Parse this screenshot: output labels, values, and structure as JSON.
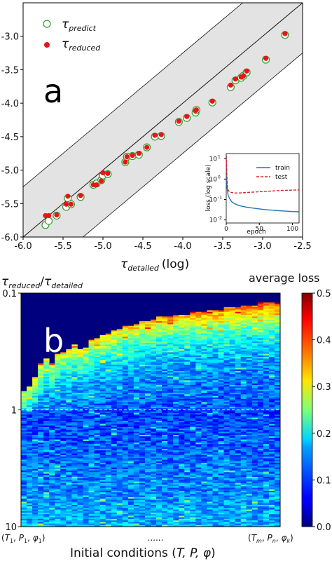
{
  "chart_data": [
    {
      "panel": "a",
      "type": "scatter",
      "xlabel": "τdetailed (log)",
      "xlabel_main": "τ",
      "xlabel_sub": "detailed",
      "xlabel_suffix": "(log)",
      "xlim": [
        -6.0,
        -2.5
      ],
      "ylim": [
        -6.0,
        -2.5
      ],
      "x_ticks": [
        "-6.0",
        "-5.5",
        "-5.0",
        "-4.5",
        "-4.0",
        "-3.5",
        "-3.0",
        "-2.5"
      ],
      "y_ticks": [
        "-3.0",
        "-3.5",
        "-4.0",
        "-4.5",
        "-5.0",
        "-5.5",
        "-6.0"
      ],
      "band_halfwidth": 0.75,
      "series": [
        {
          "name": "τpredict",
          "name_main": "τ",
          "name_sub": "predict",
          "marker": "hollow-circle",
          "edge_color": "#2ca02c",
          "fill_color": "#ffffff"
        },
        {
          "name": "τreduced",
          "name_main": "τ",
          "name_sub": "reduced",
          "marker": "filled-circle",
          "color": "#e8141a"
        }
      ],
      "points": [
        {
          "x": -5.72,
          "pred": -5.82,
          "red": -5.68
        },
        {
          "x": -5.68,
          "pred": -5.76,
          "red": -5.68
        },
        {
          "x": -5.58,
          "pred": -5.68,
          "red": -5.67
        },
        {
          "x": -5.46,
          "pred": -5.55,
          "red": -5.51
        },
        {
          "x": -5.44,
          "pred": -5.42,
          "red": -5.39
        },
        {
          "x": -5.4,
          "pred": -5.51,
          "red": -5.51
        },
        {
          "x": -5.28,
          "pred": -5.4,
          "red": -5.38
        },
        {
          "x": -5.12,
          "pred": -5.22,
          "red": -5.22
        },
        {
          "x": -5.08,
          "pred": -5.2,
          "red": -5.22
        },
        {
          "x": -5.02,
          "pred": -5.15,
          "red": -5.16
        },
        {
          "x": -5.0,
          "pred": -5.08,
          "red": -5.04
        },
        {
          "x": -4.94,
          "pred": -5.06,
          "red": -5.05
        },
        {
          "x": -4.72,
          "pred": -4.88,
          "red": -4.88
        },
        {
          "x": -4.7,
          "pred": -4.8,
          "red": -4.8
        },
        {
          "x": -4.63,
          "pred": -4.79,
          "red": -4.78
        },
        {
          "x": -4.55,
          "pred": -4.77,
          "red": -4.75
        },
        {
          "x": -4.45,
          "pred": -4.66,
          "red": -4.66
        },
        {
          "x": -4.35,
          "pred": -4.5,
          "red": -4.48
        },
        {
          "x": -4.27,
          "pred": -4.49,
          "red": -4.47
        },
        {
          "x": -4.05,
          "pred": -4.28,
          "red": -4.27
        },
        {
          "x": -3.95,
          "pred": -4.22,
          "red": -4.2
        },
        {
          "x": -3.84,
          "pred": -4.14,
          "red": -4.11
        },
        {
          "x": -3.83,
          "pred": -4.1,
          "red": -4.1
        },
        {
          "x": -3.63,
          "pred": -3.99,
          "red": -3.97
        },
        {
          "x": -3.4,
          "pred": -3.76,
          "red": -3.73
        },
        {
          "x": -3.34,
          "pred": -3.66,
          "red": -3.64
        },
        {
          "x": -3.27,
          "pred": -3.62,
          "red": -3.61
        },
        {
          "x": -3.24,
          "pred": -3.59,
          "red": -3.59
        },
        {
          "x": -3.2,
          "pred": -3.54,
          "red": -3.52
        },
        {
          "x": -2.96,
          "pred": -3.35,
          "red": -3.33
        },
        {
          "x": -2.72,
          "pred": -2.98,
          "red": -2.96
        }
      ],
      "inset": {
        "type": "line",
        "xlabel": "epoch",
        "ylabel": "loss (log scale)",
        "x_ticks": [
          "0",
          "50",
          "100"
        ],
        "y_ticks": [
          {
            "base": "10",
            "exp": "1"
          },
          {
            "base": "10",
            "exp": "0"
          },
          {
            "base": "10",
            "exp": "-1"
          },
          {
            "base": "10",
            "exp": "-2"
          }
        ],
        "xlim": [
          0,
          110
        ],
        "ylim_log10": [
          -2.15,
          1.25
        ],
        "series": [
          {
            "name": "train",
            "color": "#1f77b4",
            "dash": "solid",
            "x": [
              0,
              1,
              2,
              3,
              5,
              8,
              12,
              20,
              30,
              40,
              50,
              60,
              70,
              80,
              90,
              100,
              110
            ],
            "log10y": [
              1.2,
              -0.3,
              -0.65,
              -0.8,
              -0.95,
              -1.1,
              -1.2,
              -1.3,
              -1.37,
              -1.42,
              -1.46,
              -1.5,
              -1.52,
              -1.55,
              -1.57,
              -1.59,
              -1.6
            ]
          },
          {
            "name": "test",
            "color": "#d62728",
            "dash": "dashed",
            "x": [
              0,
              1,
              2,
              3,
              5,
              8,
              12,
              20,
              30,
              40,
              50,
              60,
              70,
              80,
              90,
              100,
              110
            ],
            "log10y": [
              1.15,
              0.2,
              -0.45,
              -0.55,
              -0.62,
              -0.66,
              -0.68,
              -0.68,
              -0.66,
              -0.64,
              -0.62,
              -0.6,
              -0.58,
              -0.56,
              -0.55,
              -0.54,
              -0.53
            ]
          }
        ]
      }
    },
    {
      "panel": "b",
      "type": "heatmap",
      "ylabel": "τreduced/τdetailed",
      "ylabel_main1": "τ",
      "ylabel_sub1": "reduced",
      "ylabel_slash": "/",
      "ylabel_main2": "τ",
      "ylabel_sub2": "detailed",
      "xlabel": "Initial conditions (T, P, φ)",
      "xlabel_prefix": "Initial conditions (",
      "xlabel_vars": "T, P, φ",
      "xlabel_suffix": ")",
      "x_tick_first": "(T1, P1, φ1)",
      "x_tick_mid": "......",
      "x_tick_last": "(Tm, Pn, φk)",
      "y_ticks": [
        "0.1",
        "1",
        "10"
      ],
      "ylim_log10": [
        -1,
        1
      ],
      "reference_line": 1,
      "colorbar": {
        "label": "average loss",
        "ticks": [
          "0.5",
          "0.4",
          "0.3",
          "0.2",
          "0.1",
          "0.0"
        ],
        "min": 0.0,
        "max": 0.5,
        "colormap": "jet"
      },
      "columns": 46,
      "mask_profile": [
        0.42,
        0.4,
        0.36,
        0.3,
        0.28,
        0.3,
        0.26,
        0.25,
        0.24,
        0.22,
        0.24,
        0.23,
        0.2,
        0.19,
        0.18,
        0.17,
        0.16,
        0.15,
        0.14,
        0.14,
        0.13,
        0.12,
        0.12,
        0.11,
        0.1,
        0.1,
        0.1,
        0.09,
        0.09,
        0.09,
        0.08,
        0.08,
        0.08,
        0.07,
        0.07,
        0.07,
        0.06,
        0.06,
        0.06,
        0.05,
        0.05,
        0.05,
        0.04,
        0.04,
        0.04,
        0.04
      ],
      "mask_color": "#00007f"
    }
  ],
  "figure": {
    "panel_a_label": "a",
    "panel_b_label": "b"
  }
}
